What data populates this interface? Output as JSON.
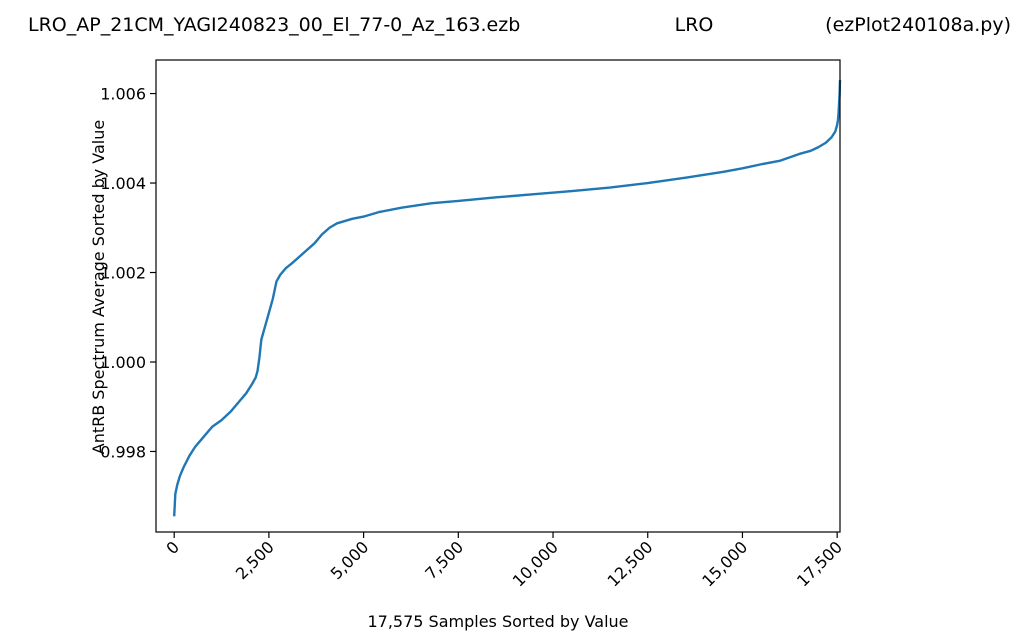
{
  "figure": {
    "title_left": "LRO_AP_21CM_YAGI240823_00_El_77-0_Az_163.ezb",
    "title_center": "LRO",
    "title_right": "(ezPlot240108a.py)"
  },
  "chart_data": {
    "type": "line",
    "title": "",
    "xlabel": "17,575 Samples Sorted by Value",
    "ylabel": "AntRB Spectrum Average Sorted by Value",
    "xlim": [
      -480,
      17575
    ],
    "ylim": [
      0.9962,
      1.00675
    ],
    "grid": false,
    "legend": "none",
    "x_ticks": [
      {
        "value": 0,
        "label": "0"
      },
      {
        "value": 2500,
        "label": "2,500"
      },
      {
        "value": 5000,
        "label": "5,000"
      },
      {
        "value": 7500,
        "label": "7,500"
      },
      {
        "value": 10000,
        "label": "10,000"
      },
      {
        "value": 12500,
        "label": "12,500"
      },
      {
        "value": 15000,
        "label": "15,000"
      },
      {
        "value": 17500,
        "label": "17,500"
      }
    ],
    "y_ticks": [
      {
        "value": 0.998,
        "label": "0.998"
      },
      {
        "value": 1.0,
        "label": "1.000"
      },
      {
        "value": 1.002,
        "label": "1.002"
      },
      {
        "value": 1.004,
        "label": "1.004"
      },
      {
        "value": 1.006,
        "label": "1.006"
      }
    ],
    "series": [
      {
        "color": "#1f77b4",
        "x": [
          0,
          30,
          80,
          150,
          250,
          400,
          550,
          750,
          1000,
          1250,
          1500,
          1750,
          1900,
          2050,
          2150,
          2200,
          2250,
          2300,
          2400,
          2500,
          2600,
          2700,
          2800,
          2950,
          3100,
          3300,
          3500,
          3700,
          3900,
          4100,
          4300,
          4500,
          4700,
          5000,
          5400,
          6000,
          6800,
          7500,
          8500,
          9500,
          10500,
          11500,
          12500,
          13500,
          14500,
          15000,
          15500,
          16000,
          16500,
          16800,
          17000,
          17200,
          17350,
          17450,
          17500,
          17520,
          17535,
          17545,
          17555,
          17565,
          17570,
          17575
        ],
        "y": [
          0.99655,
          0.99705,
          0.99725,
          0.99745,
          0.99765,
          0.9979,
          0.9981,
          0.9983,
          0.99855,
          0.9987,
          0.9989,
          0.99915,
          0.9993,
          0.9995,
          0.99965,
          0.9998,
          1.0001,
          1.0005,
          1.0008,
          1.0011,
          1.0014,
          1.0018,
          1.00195,
          1.0021,
          1.0022,
          1.00235,
          1.0025,
          1.00265,
          1.00285,
          1.003,
          1.0031,
          1.00315,
          1.0032,
          1.00325,
          1.00335,
          1.00345,
          1.00355,
          1.0036,
          1.00368,
          1.00375,
          1.00382,
          1.0039,
          1.004,
          1.00412,
          1.00425,
          1.00433,
          1.00442,
          1.0045,
          1.00465,
          1.00472,
          1.0048,
          1.0049,
          1.00502,
          1.00515,
          1.0053,
          1.0054,
          1.00555,
          1.0057,
          1.00585,
          1.006,
          1.00615,
          1.0063
        ]
      }
    ]
  }
}
